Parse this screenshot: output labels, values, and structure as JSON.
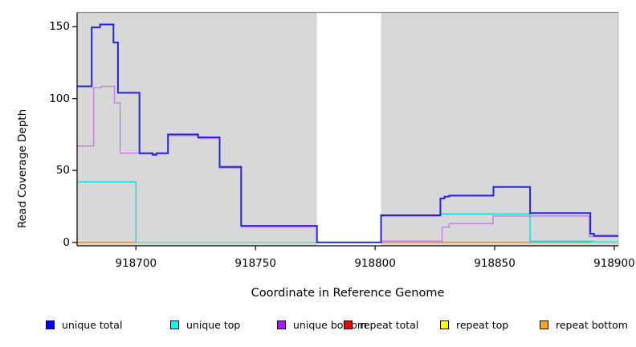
{
  "chart_data": {
    "type": "line",
    "style": "step",
    "title": "",
    "xlabel": "Coordinate in Reference Genome",
    "ylabel": "Read Coverage Depth",
    "xlim": [
      918675.4,
      918901.7
    ],
    "ylim": [
      0,
      155
    ],
    "x_ticks": [
      918700,
      918750,
      918800,
      918850,
      918900
    ],
    "y_ticks": [
      0,
      50,
      100,
      150
    ],
    "grid": false,
    "plot_background": "#d8d8d8",
    "gap_region": {
      "start": 918775.7,
      "end": 918802.5,
      "color": "#ffffff"
    },
    "legend_position": "bottom",
    "legend": [
      {
        "label": "unique total",
        "color": "#0000ff"
      },
      {
        "label": "unique top",
        "color": "#00ffff"
      },
      {
        "label": "unique bottom",
        "color": "#a020f0"
      },
      {
        "label": "repeat total",
        "color": "#ee0000"
      },
      {
        "label": "repeat top",
        "color": "#ffff00"
      },
      {
        "label": "repeat bottom",
        "color": "#ffa519"
      }
    ],
    "series": [
      {
        "name": "repeat-bottom",
        "color": "#ff8c1e",
        "width": 1.7,
        "segments": [
          [
            [
              918675.4,
              0
            ],
            [
              918700,
              0
            ]
          ],
          [
            [
              918802.5,
              0
            ],
            [
              918890,
              0
            ]
          ]
        ]
      },
      {
        "name": "unique-top",
        "color": "#00dde6",
        "width": 1.4,
        "segments": [
          [
            [
              918675.4,
              42
            ],
            [
              918700,
              0
            ],
            [
              918802.5,
              18.2
            ],
            [
              918827.3,
              19.8
            ],
            [
              918864.8,
              0.8
            ],
            [
              918891.5,
              0.3
            ],
            [
              918901.7,
              0.3
            ]
          ]
        ]
      },
      {
        "name": "zero-overlap-line",
        "color": "#90d195",
        "width": 1.4,
        "segments": [
          [
            [
              918700,
              0
            ],
            [
              918775.7,
              0
            ]
          ],
          [
            [
              918890,
              0
            ],
            [
              918901.7,
              0
            ]
          ]
        ]
      },
      {
        "name": "unique-bottom",
        "color": "#c480e2",
        "width": 1.4,
        "segments": [
          [
            [
              918675.4,
              67
            ],
            [
              918682.3,
              107.5
            ],
            [
              918685.5,
              108.5
            ],
            [
              918691,
              97
            ],
            [
              918693.4,
              62
            ],
            [
              918701.5,
              61.5
            ],
            [
              918713.4,
              74.2
            ],
            [
              918726,
              72.2
            ],
            [
              918735,
              51.7
            ],
            [
              918744,
              10.7
            ],
            [
              918775.7,
              0
            ],
            [
              918802.5,
              0.9
            ],
            [
              918828,
              10.5
            ],
            [
              918831,
              13
            ],
            [
              918849.3,
              18.3
            ],
            [
              918889.5,
              4
            ],
            [
              918901.7,
              4
            ]
          ]
        ]
      },
      {
        "name": "unique-total",
        "color": "#2525df",
        "width": 2,
        "segments": [
          [
            [
              918675.4,
              108.5
            ],
            [
              918681.5,
              149.5
            ],
            [
              918685,
              151.5
            ],
            [
              918690.6,
              139
            ],
            [
              918692.5,
              104
            ],
            [
              918701.5,
              62
            ],
            [
              918707,
              60.9
            ],
            [
              918708.6,
              62
            ],
            [
              918713.4,
              75
            ],
            [
              918726,
              73
            ],
            [
              918735,
              52.5
            ],
            [
              918744,
              11.5
            ],
            [
              918775.7,
              0
            ],
            [
              918802.5,
              18.8
            ],
            [
              918827.3,
              30.5
            ],
            [
              918829,
              31.8
            ],
            [
              918831,
              32.5
            ],
            [
              918849.5,
              38.5
            ],
            [
              918864.8,
              20.4
            ],
            [
              918890,
              6
            ],
            [
              918891.5,
              4.5
            ],
            [
              918901.7,
              4.5
            ]
          ]
        ]
      }
    ]
  }
}
